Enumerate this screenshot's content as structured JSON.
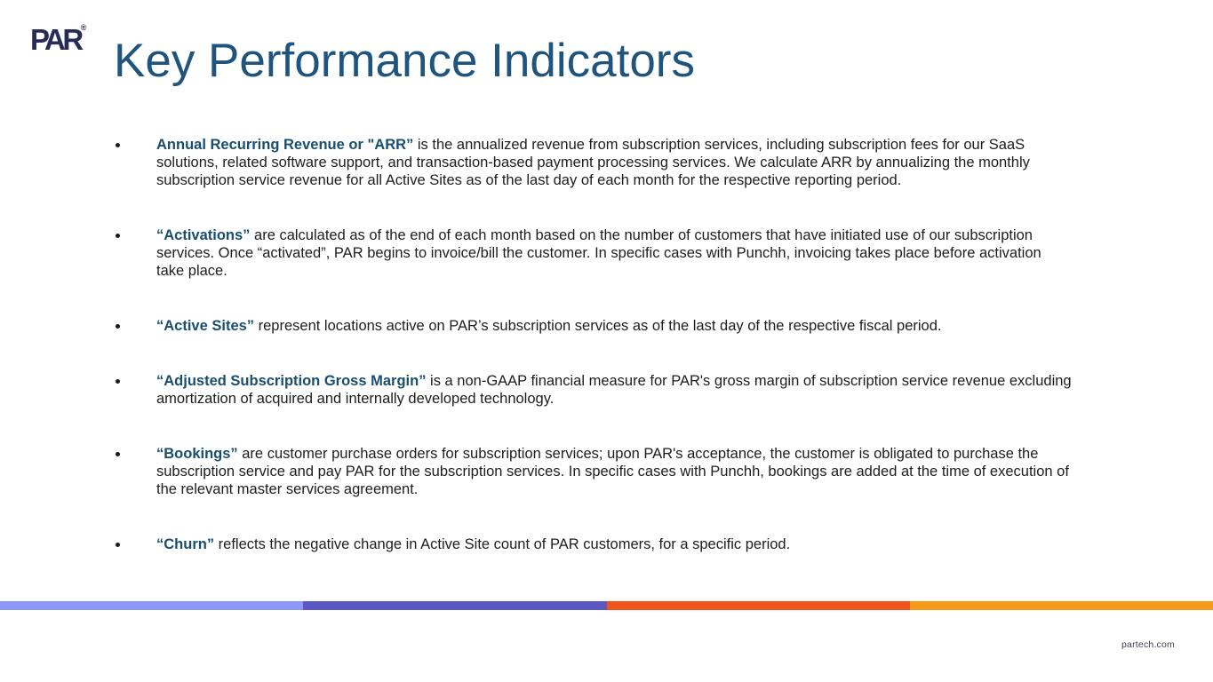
{
  "slide": {
    "title": "Key Performance Indicators",
    "logo_text": "PAR",
    "logo_reg_mark": "®",
    "footer_link": "partech.com"
  },
  "bullets": [
    {
      "term": "Annual Recurring Revenue or \"ARR”",
      "rest": " is the annualized revenue from subscription services, including subscription fees for our SaaS solutions, related software support, and transaction-based payment processing services. We calculate ARR by annualizing the monthly subscription service revenue for all Active Sites as of the last day of each month for the respective reporting period."
    },
    {
      "term": "“Activations”",
      "rest": " are calculated as of the end of each month based on the number of customers that have initiated use of our subscription services. Once “activated”, PAR begins to invoice/bill the customer. In specific cases with Punchh, invoicing takes place before activation take place."
    },
    {
      "term": "“Active Sites”",
      "rest": " represent locations active on PAR’s subscription services as of the last day of the respective fiscal period."
    },
    {
      "term": "“Adjusted Subscription Gross Margin”",
      "rest": " is a non-GAAP financial measure for PAR's gross margin of subscription service revenue excluding amortization of acquired and internally developed technology."
    },
    {
      "term": "“Bookings”",
      "rest": " are customer purchase orders for subscription services; upon PAR's acceptance, the customer is obligated to purchase the subscription service and pay PAR for the subscription services. In specific cases with Punchh, bookings are added at the time of execution of the relevant master services agreement."
    },
    {
      "term": "“Churn”",
      "rest": " reflects the negative change in Active Site count of PAR customers, for a specific period."
    }
  ],
  "colors": {
    "title": "#1E547E",
    "term": "#184E70",
    "body": "#1D1D1B",
    "logo": "#272B56",
    "footer": "#3F3F55",
    "bar_segments": [
      "#8C99F8",
      "#5B57C3",
      "#F1531D",
      "#F49C1A"
    ]
  }
}
